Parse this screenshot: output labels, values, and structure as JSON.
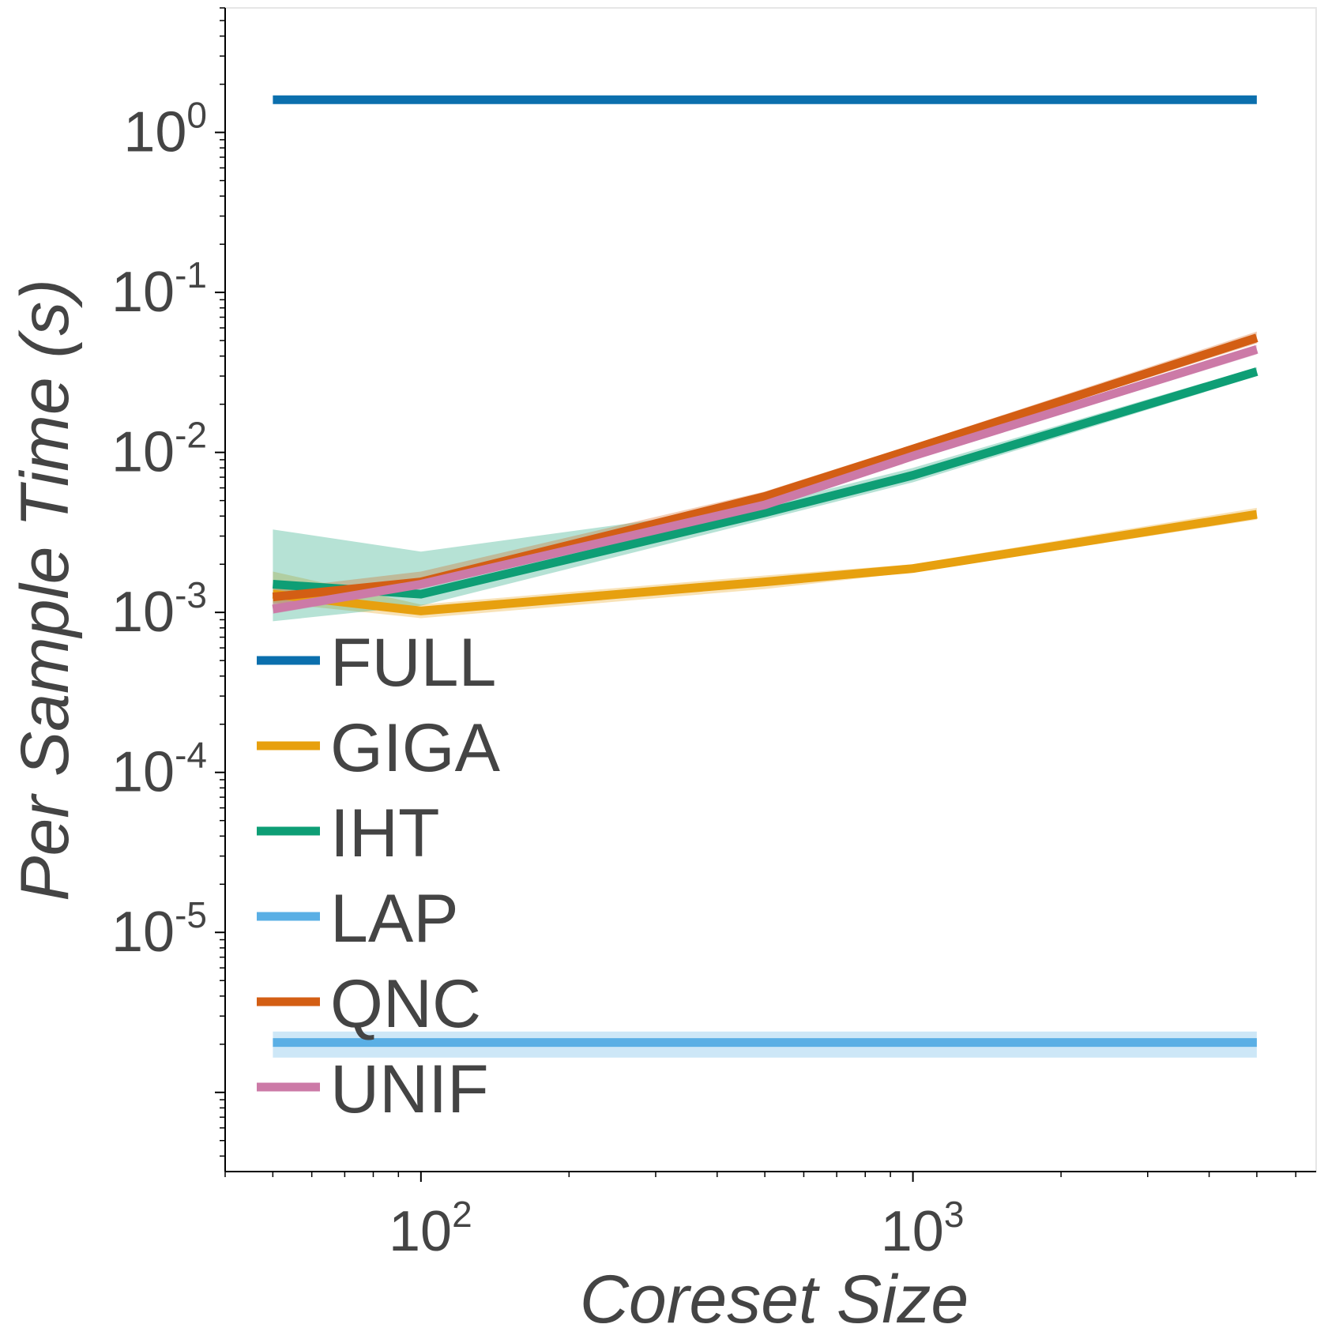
{
  "chart_data": {
    "type": "line",
    "xlabel": "Coreset Size",
    "ylabel": "Per Sample Time (s)",
    "xscale": "log",
    "yscale": "log",
    "xlim": [
      40,
      6600
    ],
    "ylim": [
      3.2e-07,
      6.0
    ],
    "x_ticks": [
      {
        "value": 100,
        "base": "10",
        "exp": "2"
      },
      {
        "value": 1000,
        "base": "10",
        "exp": "3"
      }
    ],
    "y_ticks": [
      {
        "value": 1,
        "base": "10",
        "exp": "0"
      },
      {
        "value": 0.1,
        "base": "10",
        "exp": "-1"
      },
      {
        "value": 0.01,
        "base": "10",
        "exp": "-2"
      },
      {
        "value": 0.001,
        "base": "10",
        "exp": "-3"
      },
      {
        "value": 0.0001,
        "base": "10",
        "exp": "-4"
      },
      {
        "value": 1e-05,
        "base": "10",
        "exp": "-5"
      }
    ],
    "grid": false,
    "legend": {
      "placement": "lower-left"
    },
    "series": [
      {
        "name": "FULL",
        "color": "#0b6fad",
        "x": [
          50,
          5000
        ],
        "y": [
          1.6,
          1.6
        ],
        "lower": [
          1.6,
          1.6
        ],
        "upper": [
          1.6,
          1.6
        ]
      },
      {
        "name": "GIGA",
        "color": "#e7a00f",
        "x": [
          50,
          100,
          500,
          1000,
          5000
        ],
        "y": [
          0.0013,
          0.00102,
          0.00155,
          0.00188,
          0.0041
        ],
        "lower": [
          0.00115,
          0.00092,
          0.0014,
          0.00178,
          0.0038
        ],
        "upper": [
          0.0018,
          0.00112,
          0.0017,
          0.002,
          0.0045
        ]
      },
      {
        "name": "IHT",
        "color": "#0e9e75",
        "x": [
          50,
          100,
          500,
          1000,
          5000
        ],
        "y": [
          0.0015,
          0.0013,
          0.0042,
          0.0072,
          0.032
        ],
        "lower": [
          0.00088,
          0.0011,
          0.0038,
          0.0065,
          0.03
        ],
        "upper": [
          0.0033,
          0.0024,
          0.0047,
          0.008,
          0.034
        ]
      },
      {
        "name": "LAP",
        "color": "#5aafe5",
        "x": [
          50,
          5000
        ],
        "y": [
          2.05e-06,
          2.05e-06
        ],
        "lower": [
          1.65e-06,
          1.65e-06
        ],
        "upper": [
          2.4e-06,
          2.4e-06
        ]
      },
      {
        "name": "QNC",
        "color": "#d35e14",
        "x": [
          50,
          100,
          500,
          1000,
          5000
        ],
        "y": [
          0.00125,
          0.00155,
          0.0053,
          0.0105,
          0.052
        ],
        "lower": [
          0.0011,
          0.00145,
          0.005,
          0.01,
          0.048
        ],
        "upper": [
          0.0014,
          0.0018,
          0.0057,
          0.0112,
          0.057
        ]
      },
      {
        "name": "UNIF",
        "color": "#cc7aa7",
        "x": [
          50,
          100,
          500,
          1000,
          5000
        ],
        "y": [
          0.00105,
          0.0015,
          0.0047,
          0.0095,
          0.044
        ],
        "lower": [
          0.00098,
          0.0014,
          0.0045,
          0.009,
          0.041
        ],
        "upper": [
          0.00115,
          0.0016,
          0.005,
          0.01,
          0.047
        ]
      }
    ]
  }
}
